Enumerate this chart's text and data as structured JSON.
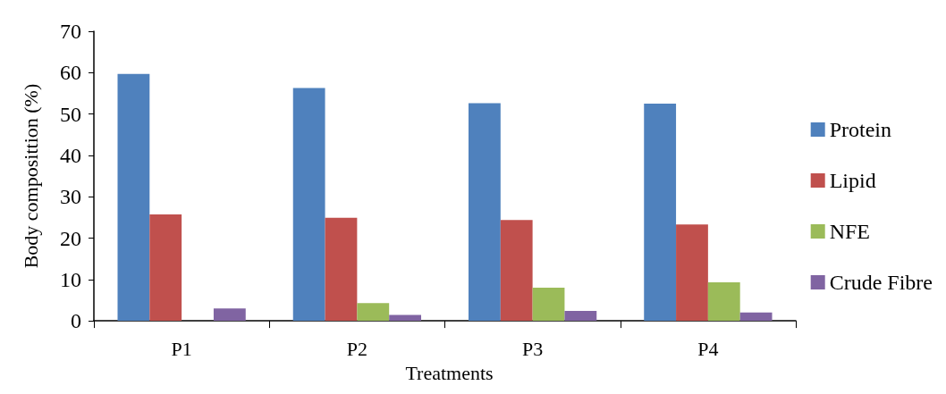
{
  "chart_data": {
    "type": "bar",
    "xlabel": "Treatments",
    "ylabel": "Body composittion (%)",
    "categories": [
      "P1",
      "P2",
      "P3",
      "P4"
    ],
    "series": [
      {
        "name": "Protein",
        "color": "#4f81bd",
        "values": [
          59.7,
          56.3,
          52.6,
          52.5
        ]
      },
      {
        "name": "Lipid",
        "color": "#c0504d",
        "values": [
          25.7,
          24.9,
          24.4,
          23.3
        ]
      },
      {
        "name": "NFE",
        "color": "#9bbb59",
        "values": [
          0,
          4.3,
          8.0,
          9.3
        ]
      },
      {
        "name": "Crude Fibre",
        "color": "#8064a2",
        "values": [
          3.0,
          1.4,
          2.4,
          2.0
        ]
      }
    ],
    "ylim": [
      0,
      70
    ],
    "yticks": [
      0,
      10,
      20,
      30,
      40,
      50,
      60,
      70
    ],
    "grid": false,
    "legend": "right"
  }
}
